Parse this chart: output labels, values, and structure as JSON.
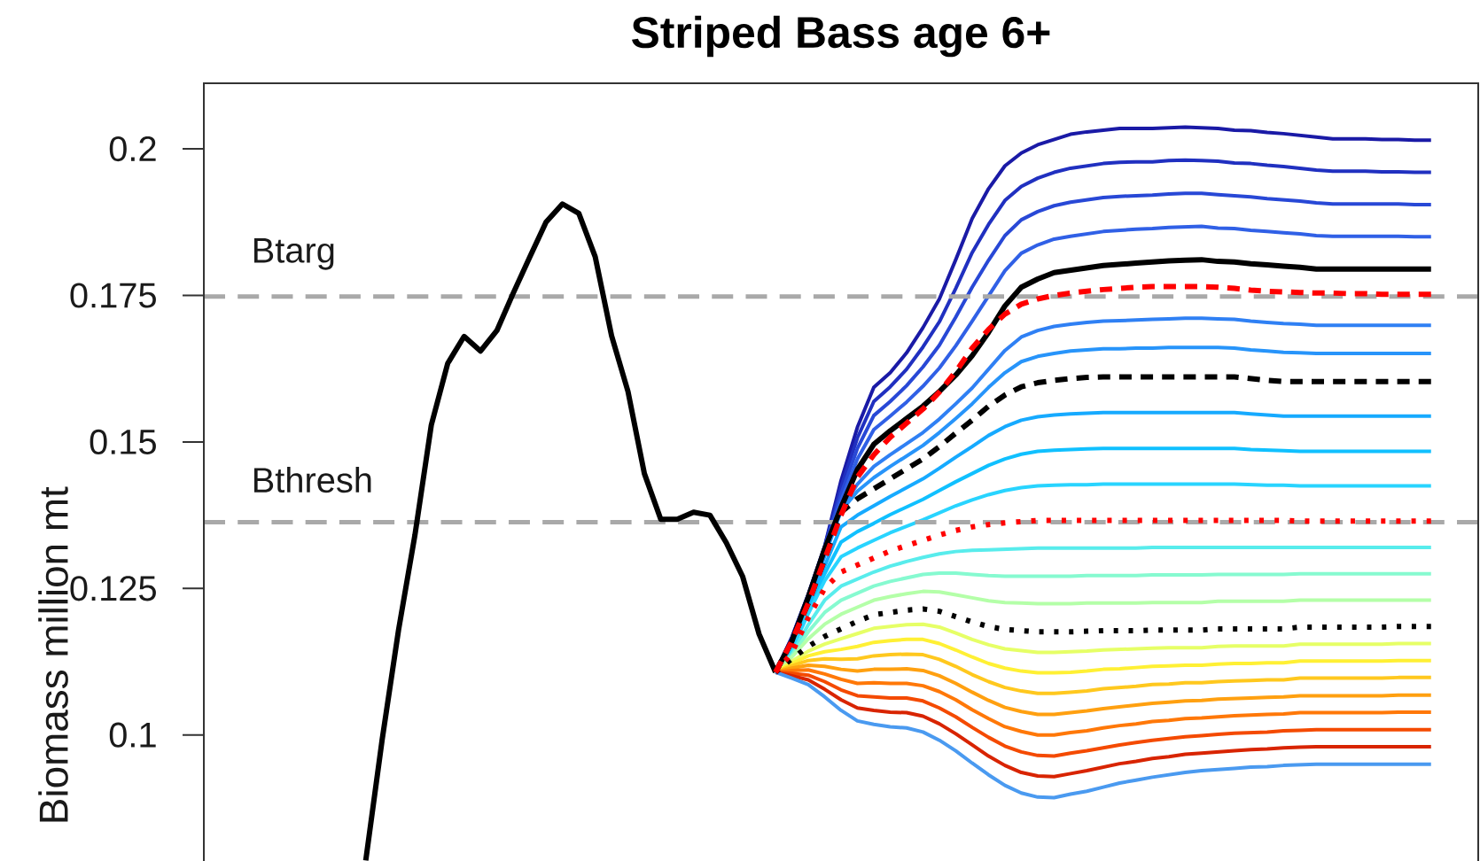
{
  "chart_data": {
    "type": "line",
    "title": "Striped Bass age 6+",
    "ylabel": "Biomass million mt",
    "categories": [
      null,
      null,
      null,
      null,
      null,
      null,
      null,
      null,
      null,
      null,
      null,
      null,
      null,
      null,
      null,
      null,
      null,
      null,
      null,
      null,
      null,
      null,
      null,
      null,
      null,
      null,
      null,
      null,
      null,
      null,
      null,
      null,
      null,
      null,
      null,
      null,
      null,
      null,
      null,
      null,
      null,
      null,
      null,
      null,
      null,
      null,
      null,
      null,
      null,
      null,
      null,
      null,
      null,
      null,
      null,
      null,
      null,
      null,
      null,
      null,
      null,
      null,
      null,
      null,
      null,
      null,
      null,
      null,
      null,
      null,
      null,
      null,
      null
    ],
    "ylim": [
      0.0785,
      0.2112
    ],
    "yticks": [
      0.1,
      0.125,
      0.15,
      0.175,
      0.2
    ],
    "tick_labels": "y",
    "ref_lines": [
      {
        "axis": "y",
        "value": 0.1748,
        "label": "Btarg",
        "color": "#a9a9a9",
        "line_style": "dashed"
      },
      {
        "axis": "y",
        "value": 0.1363,
        "label": "Bthresh",
        "color": "#a9a9a9",
        "line_style": "dashed"
      }
    ],
    "series": [
      {
        "color": "#1a1aa6",
        "values": [
          null,
          null,
          null,
          null,
          null,
          null,
          null,
          null,
          null,
          null,
          null,
          null,
          null,
          null,
          null,
          null,
          null,
          null,
          null,
          null,
          null,
          null,
          null,
          null,
          null,
          null,
          null,
          null,
          null,
          null,
          null,
          null,
          0.1107,
          0.1167,
          0.124,
          0.1322,
          0.1434,
          0.1525,
          0.1593,
          0.1618,
          0.1652,
          0.1695,
          0.1744,
          0.1811,
          0.1881,
          0.1932,
          0.1971,
          0.1993,
          0.2007,
          0.2016,
          0.2025,
          0.2029,
          0.2032,
          0.2035,
          0.2035,
          0.2035,
          0.2036,
          0.2037,
          0.2036,
          0.2035,
          0.2032,
          0.2031,
          0.2028,
          0.2026,
          0.2023,
          0.202,
          0.2017,
          0.2017,
          0.2017,
          0.2016,
          0.2016,
          0.2015,
          0.2015
        ]
      },
      {
        "color": "#2030c0",
        "values": [
          null,
          null,
          null,
          null,
          null,
          null,
          null,
          null,
          null,
          null,
          null,
          null,
          null,
          null,
          null,
          null,
          null,
          null,
          null,
          null,
          null,
          null,
          null,
          null,
          null,
          null,
          null,
          null,
          null,
          null,
          null,
          null,
          0.1107,
          0.1166,
          0.1239,
          0.1321,
          0.1423,
          0.1507,
          0.1569,
          0.1594,
          0.1624,
          0.1662,
          0.1705,
          0.1762,
          0.1823,
          0.1871,
          0.1912,
          0.1936,
          0.195,
          0.196,
          0.1967,
          0.1971,
          0.1975,
          0.1977,
          0.1978,
          0.1978,
          0.198,
          0.1981,
          0.198,
          0.1979,
          0.1976,
          0.1975,
          0.1972,
          0.197,
          0.1967,
          0.1964,
          0.1962,
          0.1962,
          0.1962,
          0.1961,
          0.1961,
          0.196,
          0.196
        ]
      },
      {
        "color": "#2848d6",
        "values": [
          null,
          null,
          null,
          null,
          null,
          null,
          null,
          null,
          null,
          null,
          null,
          null,
          null,
          null,
          null,
          null,
          null,
          null,
          null,
          null,
          null,
          null,
          null,
          null,
          null,
          null,
          null,
          null,
          null,
          null,
          null,
          null,
          0.1107,
          0.1164,
          0.1238,
          0.132,
          0.1411,
          0.1489,
          0.1545,
          0.1569,
          0.1596,
          0.1628,
          0.1665,
          0.1713,
          0.1764,
          0.181,
          0.1852,
          0.1879,
          0.1893,
          0.1903,
          0.1909,
          0.1913,
          0.1917,
          0.1919,
          0.192,
          0.1921,
          0.1923,
          0.1924,
          0.1924,
          0.1922,
          0.192,
          0.1918,
          0.1915,
          0.1913,
          0.1911,
          0.1908,
          0.1906,
          0.1906,
          0.1906,
          0.1906,
          0.1906,
          0.1905,
          0.1905
        ]
      },
      {
        "color": "#3060e6",
        "values": [
          null,
          null,
          null,
          null,
          null,
          null,
          null,
          null,
          null,
          null,
          null,
          null,
          null,
          null,
          null,
          null,
          null,
          null,
          null,
          null,
          null,
          null,
          null,
          null,
          null,
          null,
          null,
          null,
          null,
          null,
          null,
          null,
          0.1107,
          0.1162,
          0.1237,
          0.1319,
          0.14,
          0.1471,
          0.1521,
          0.1544,
          0.1568,
          0.1595,
          0.1626,
          0.1664,
          0.1706,
          0.1749,
          0.1792,
          0.1822,
          0.1836,
          0.1846,
          0.1851,
          0.1855,
          0.1859,
          0.1861,
          0.1863,
          0.1864,
          0.1866,
          0.1867,
          0.1868,
          0.1865,
          0.1864,
          0.1861,
          0.1859,
          0.1857,
          0.1855,
          0.1852,
          0.1851,
          0.1851,
          0.1851,
          0.1851,
          0.1851,
          0.185,
          0.185
        ]
      },
      {
        "color": "#2f80f4",
        "values": [
          null,
          null,
          null,
          null,
          null,
          null,
          null,
          null,
          null,
          null,
          null,
          null,
          null,
          null,
          null,
          null,
          null,
          null,
          null,
          null,
          null,
          null,
          null,
          null,
          null,
          null,
          null,
          null,
          null,
          null,
          null,
          null,
          0.1107,
          0.116,
          0.123,
          0.1309,
          0.1384,
          0.1428,
          0.1458,
          0.1478,
          0.1497,
          0.1516,
          0.1539,
          0.1565,
          0.1592,
          0.1624,
          0.1656,
          0.1679,
          0.169,
          0.1697,
          0.1701,
          0.1704,
          0.1706,
          0.1707,
          0.1708,
          0.1709,
          0.171,
          0.1711,
          0.1711,
          0.171,
          0.1709,
          0.1706,
          0.1704,
          0.1702,
          0.1701,
          0.1699,
          0.1699,
          0.1699,
          0.1699,
          0.1699,
          0.1699,
          0.1699,
          0.1699
        ]
      },
      {
        "color": "#2794fa",
        "values": [
          null,
          null,
          null,
          null,
          null,
          null,
          null,
          null,
          null,
          null,
          null,
          null,
          null,
          null,
          null,
          null,
          null,
          null,
          null,
          null,
          null,
          null,
          null,
          null,
          null,
          null,
          null,
          null,
          null,
          null,
          null,
          null,
          0.1107,
          0.116,
          0.1228,
          0.1305,
          0.1382,
          0.1416,
          0.1439,
          0.1458,
          0.1476,
          0.1494,
          0.1516,
          0.154,
          0.1565,
          0.1593,
          0.1618,
          0.1637,
          0.1646,
          0.1651,
          0.1655,
          0.1657,
          0.1659,
          0.1659,
          0.166,
          0.166,
          0.1661,
          0.1661,
          0.1661,
          0.1661,
          0.166,
          0.1657,
          0.1655,
          0.1653,
          0.1652,
          0.1651,
          0.1651,
          0.1651,
          0.1651,
          0.1651,
          0.1651,
          0.1651,
          0.1651
        ]
      },
      {
        "color": "#16aaff",
        "values": [
          null,
          null,
          null,
          null,
          null,
          null,
          null,
          null,
          null,
          null,
          null,
          null,
          null,
          null,
          null,
          null,
          null,
          null,
          null,
          null,
          null,
          null,
          null,
          null,
          null,
          null,
          null,
          null,
          null,
          null,
          null,
          null,
          0.1107,
          0.1155,
          0.1219,
          0.1288,
          0.1355,
          0.1375,
          0.1391,
          0.1407,
          0.1422,
          0.1437,
          0.1455,
          0.1474,
          0.1492,
          0.1511,
          0.1526,
          0.1537,
          0.1543,
          0.1546,
          0.1548,
          0.1549,
          0.155,
          0.155,
          0.155,
          0.155,
          0.155,
          0.155,
          0.155,
          0.155,
          0.155,
          0.1548,
          0.1546,
          0.1544,
          0.1544,
          0.1544,
          0.1544,
          0.1544,
          0.1544,
          0.1544,
          0.1544,
          0.1544,
          0.1544
        ]
      },
      {
        "color": "#10c0ff",
        "values": [
          null,
          null,
          null,
          null,
          null,
          null,
          null,
          null,
          null,
          null,
          null,
          null,
          null,
          null,
          null,
          null,
          null,
          null,
          null,
          null,
          null,
          null,
          null,
          null,
          null,
          null,
          null,
          null,
          null,
          null,
          null,
          null,
          0.1107,
          0.115,
          0.1213,
          0.1275,
          0.1329,
          0.1347,
          0.1361,
          0.1376,
          0.1389,
          0.1402,
          0.1417,
          0.1432,
          0.1446,
          0.146,
          0.1471,
          0.1479,
          0.1484,
          0.1486,
          0.1487,
          0.1488,
          0.1489,
          0.1489,
          0.1489,
          0.1489,
          0.1489,
          0.1489,
          0.1489,
          0.1489,
          0.1489,
          0.1487,
          0.1486,
          0.1485,
          0.1484,
          0.1484,
          0.1484,
          0.1484,
          0.1484,
          0.1484,
          0.1484,
          0.1484,
          0.1484
        ]
      },
      {
        "color": "#28d4ff",
        "values": [
          null,
          null,
          null,
          null,
          null,
          null,
          null,
          null,
          null,
          null,
          null,
          null,
          null,
          null,
          null,
          null,
          null,
          null,
          null,
          null,
          null,
          null,
          null,
          null,
          null,
          null,
          null,
          null,
          null,
          null,
          null,
          null,
          0.1107,
          0.1145,
          0.1207,
          0.1263,
          0.1304,
          0.1319,
          0.1332,
          0.1345,
          0.1356,
          0.1367,
          0.1379,
          0.1391,
          0.1401,
          0.141,
          0.1417,
          0.1422,
          0.1425,
          0.1426,
          0.1427,
          0.1427,
          0.1428,
          0.1428,
          0.1428,
          0.1428,
          0.1428,
          0.1428,
          0.1428,
          0.1428,
          0.1428,
          0.1427,
          0.1426,
          0.1426,
          0.1425,
          0.1425,
          0.1425,
          0.1425,
          0.1425,
          0.1425,
          0.1425,
          0.1425,
          0.1425
        ]
      },
      {
        "color": "#58ecec",
        "values": [
          null,
          null,
          null,
          null,
          null,
          null,
          null,
          null,
          null,
          null,
          null,
          null,
          null,
          null,
          null,
          null,
          null,
          null,
          null,
          null,
          null,
          null,
          null,
          null,
          null,
          null,
          null,
          null,
          null,
          null,
          null,
          null,
          0.1107,
          0.1138,
          0.1188,
          0.123,
          0.1254,
          0.1266,
          0.1278,
          0.1288,
          0.1296,
          0.1303,
          0.1309,
          0.1313,
          0.1315,
          0.1316,
          0.1317,
          0.1318,
          0.1319,
          0.1319,
          0.1319,
          0.1319,
          0.1319,
          0.1319,
          0.1319,
          0.132,
          0.132,
          0.132,
          0.132,
          0.132,
          0.132,
          0.132,
          0.132,
          0.132,
          0.132,
          0.132,
          0.132,
          0.132,
          0.132,
          0.132,
          0.132,
          0.132,
          0.132
        ]
      },
      {
        "color": "#86fad0",
        "values": [
          null,
          null,
          null,
          null,
          null,
          null,
          null,
          null,
          null,
          null,
          null,
          null,
          null,
          null,
          null,
          null,
          null,
          null,
          null,
          null,
          null,
          null,
          null,
          null,
          null,
          null,
          null,
          null,
          null,
          null,
          null,
          null,
          0.1107,
          0.1135,
          0.1176,
          0.1209,
          0.123,
          0.1242,
          0.1254,
          0.1262,
          0.1268,
          0.1274,
          0.1276,
          0.1276,
          0.1274,
          0.1272,
          0.1271,
          0.1271,
          0.1271,
          0.1271,
          0.1271,
          0.1272,
          0.1272,
          0.1272,
          0.1272,
          0.1273,
          0.1273,
          0.1273,
          0.1273,
          0.1274,
          0.1274,
          0.1274,
          0.1274,
          0.1274,
          0.1275,
          0.1275,
          0.1275,
          0.1275,
          0.1275,
          0.1275,
          0.1275,
          0.1275,
          0.1275
        ]
      },
      {
        "color": "#b4ffa8",
        "values": [
          null,
          null,
          null,
          null,
          null,
          null,
          null,
          null,
          null,
          null,
          null,
          null,
          null,
          null,
          null,
          null,
          null,
          null,
          null,
          null,
          null,
          null,
          null,
          null,
          null,
          null,
          null,
          null,
          null,
          null,
          null,
          null,
          0.1107,
          0.1133,
          0.1164,
          0.1189,
          0.1206,
          0.1218,
          0.123,
          0.1236,
          0.1241,
          0.1245,
          0.1244,
          0.1239,
          0.1234,
          0.1229,
          0.1226,
          0.1225,
          0.1224,
          0.1224,
          0.1224,
          0.1225,
          0.1225,
          0.1225,
          0.1225,
          0.1226,
          0.1226,
          0.1226,
          0.1226,
          0.1228,
          0.1228,
          0.1228,
          0.1228,
          0.1228,
          0.123,
          0.123,
          0.123,
          0.123,
          0.123,
          0.123,
          0.123,
          0.123,
          0.123
        ]
      },
      {
        "color": "#e6ff66",
        "values": [
          null,
          null,
          null,
          null,
          null,
          null,
          null,
          null,
          null,
          null,
          null,
          null,
          null,
          null,
          null,
          null,
          null,
          null,
          null,
          null,
          null,
          null,
          null,
          null,
          null,
          null,
          null,
          null,
          null,
          null,
          null,
          null,
          0.1107,
          0.1126,
          0.1143,
          0.1155,
          0.1164,
          0.1173,
          0.1182,
          0.1185,
          0.1188,
          0.1189,
          0.1184,
          0.1174,
          0.1163,
          0.1154,
          0.1147,
          0.1144,
          0.1141,
          0.1141,
          0.1142,
          0.1143,
          0.1145,
          0.1146,
          0.1147,
          0.1148,
          0.1149,
          0.1149,
          0.1149,
          0.1151,
          0.1152,
          0.1152,
          0.1152,
          0.1152,
          0.1155,
          0.1155,
          0.1155,
          0.1155,
          0.1155,
          0.1155,
          0.1156,
          0.1156,
          0.1156
        ]
      },
      {
        "color": "#fff034",
        "values": [
          null,
          null,
          null,
          null,
          null,
          null,
          null,
          null,
          null,
          null,
          null,
          null,
          null,
          null,
          null,
          null,
          null,
          null,
          null,
          null,
          null,
          null,
          null,
          null,
          null,
          null,
          null,
          null,
          null,
          null,
          null,
          null,
          0.1107,
          0.1122,
          0.1135,
          0.1142,
          0.1146,
          0.1151,
          0.1158,
          0.1161,
          0.1163,
          0.1163,
          0.1156,
          0.1145,
          0.1133,
          0.1122,
          0.1114,
          0.1109,
          0.1106,
          0.1106,
          0.1107,
          0.1109,
          0.1112,
          0.1113,
          0.1115,
          0.1117,
          0.1118,
          0.1119,
          0.1119,
          0.1121,
          0.1122,
          0.1122,
          0.1123,
          0.1123,
          0.1126,
          0.1126,
          0.1126,
          0.1126,
          0.1126,
          0.1126,
          0.1127,
          0.1127,
          0.1127
        ]
      },
      {
        "color": "#ffc81e",
        "values": [
          null,
          null,
          null,
          null,
          null,
          null,
          null,
          null,
          null,
          null,
          null,
          null,
          null,
          null,
          null,
          null,
          null,
          null,
          null,
          null,
          null,
          null,
          null,
          null,
          null,
          null,
          null,
          null,
          null,
          null,
          null,
          null,
          0.1107,
          0.1118,
          0.1127,
          0.113,
          0.1129,
          0.113,
          0.1135,
          0.1137,
          0.1138,
          0.1137,
          0.1129,
          0.1117,
          0.1103,
          0.1091,
          0.1081,
          0.1075,
          0.1071,
          0.1071,
          0.1073,
          0.1075,
          0.1079,
          0.1081,
          0.1083,
          0.1086,
          0.1087,
          0.1089,
          0.1089,
          0.1091,
          0.1092,
          0.1093,
          0.1094,
          0.1094,
          0.1097,
          0.1097,
          0.1097,
          0.1097,
          0.1097,
          0.1097,
          0.1098,
          0.1098,
          0.1098
        ]
      },
      {
        "color": "#ffa010",
        "values": [
          null,
          null,
          null,
          null,
          null,
          null,
          null,
          null,
          null,
          null,
          null,
          null,
          null,
          null,
          null,
          null,
          null,
          null,
          null,
          null,
          null,
          null,
          null,
          null,
          null,
          null,
          null,
          null,
          null,
          null,
          null,
          null,
          0.1107,
          0.1114,
          0.1119,
          0.1117,
          0.1112,
          0.1109,
          0.1112,
          0.1112,
          0.1113,
          0.111,
          0.1101,
          0.1088,
          0.1073,
          0.1059,
          0.1047,
          0.104,
          0.1035,
          0.1035,
          0.1038,
          0.1041,
          0.1045,
          0.1048,
          0.1051,
          0.1054,
          0.1056,
          0.1058,
          0.1059,
          0.1061,
          0.1062,
          0.1063,
          0.1064,
          0.1065,
          0.1067,
          0.1067,
          0.1067,
          0.1067,
          0.1067,
          0.1067,
          0.1068,
          0.1068,
          0.1068
        ]
      },
      {
        "color": "#ff7808",
        "values": [
          null,
          null,
          null,
          null,
          null,
          null,
          null,
          null,
          null,
          null,
          null,
          null,
          null,
          null,
          null,
          null,
          null,
          null,
          null,
          null,
          null,
          null,
          null,
          null,
          null,
          null,
          null,
          null,
          null,
          null,
          null,
          null,
          0.1107,
          0.111,
          0.1111,
          0.1104,
          0.1095,
          0.1088,
          0.1089,
          0.1088,
          0.1088,
          0.1084,
          0.1074,
          0.106,
          0.1043,
          0.1028,
          0.1014,
          0.1006,
          0.1,
          0.1,
          0.1004,
          0.1007,
          0.1012,
          0.1016,
          0.1019,
          0.1023,
          0.1025,
          0.1028,
          0.1029,
          0.1031,
          0.1033,
          0.1034,
          0.1035,
          0.1036,
          0.1038,
          0.1038,
          0.1038,
          0.1038,
          0.1038,
          0.1038,
          0.1039,
          0.1039,
          0.1039
        ]
      },
      {
        "color": "#f44a00",
        "values": [
          null,
          null,
          null,
          null,
          null,
          null,
          null,
          null,
          null,
          null,
          null,
          null,
          null,
          null,
          null,
          null,
          null,
          null,
          null,
          null,
          null,
          null,
          null,
          null,
          null,
          null,
          null,
          null,
          null,
          null,
          null,
          null,
          0.1107,
          0.1105,
          0.1102,
          0.1091,
          0.1077,
          0.1067,
          0.1065,
          0.1063,
          0.1063,
          0.1058,
          0.1046,
          0.1031,
          0.1013,
          0.0996,
          0.0981,
          0.0971,
          0.0965,
          0.0964,
          0.0969,
          0.0973,
          0.0978,
          0.0983,
          0.0987,
          0.0991,
          0.0994,
          0.0997,
          0.0999,
          0.1001,
          0.1003,
          0.1004,
          0.1005,
          0.1007,
          0.1008,
          0.1009,
          0.1009,
          0.1009,
          0.1009,
          0.1009,
          0.1009,
          0.1009,
          0.1009
        ]
      },
      {
        "color": "#d82400",
        "values": [
          null,
          null,
          null,
          null,
          null,
          null,
          null,
          null,
          null,
          null,
          null,
          null,
          null,
          null,
          null,
          null,
          null,
          null,
          null,
          null,
          null,
          null,
          null,
          null,
          null,
          null,
          null,
          null,
          null,
          null,
          null,
          null,
          0.1107,
          0.1101,
          0.1094,
          0.1078,
          0.106,
          0.1046,
          0.1042,
          0.1039,
          0.1038,
          0.1032,
          0.1019,
          0.1002,
          0.0983,
          0.0964,
          0.0948,
          0.0936,
          0.093,
          0.0929,
          0.0934,
          0.0939,
          0.0945,
          0.0951,
          0.0955,
          0.096,
          0.0963,
          0.0967,
          0.0969,
          0.0971,
          0.0973,
          0.0975,
          0.0976,
          0.0978,
          0.0979,
          0.098,
          0.098,
          0.098,
          0.098,
          0.098,
          0.098,
          0.098,
          0.098
        ]
      },
      {
        "color": "#4a9af0",
        "values": [
          null,
          null,
          null,
          null,
          null,
          null,
          null,
          null,
          null,
          null,
          null,
          null,
          null,
          null,
          null,
          null,
          null,
          null,
          null,
          null,
          null,
          null,
          null,
          null,
          null,
          null,
          null,
          null,
          null,
          null,
          null,
          null,
          0.1107,
          0.1097,
          0.1086,
          0.1065,
          0.1042,
          0.1024,
          0.1018,
          0.1014,
          0.1012,
          0.1005,
          0.0991,
          0.0973,
          0.0952,
          0.0932,
          0.0914,
          0.0901,
          0.0894,
          0.0893,
          0.0899,
          0.0904,
          0.0911,
          0.0918,
          0.0923,
          0.0928,
          0.0932,
          0.0936,
          0.0939,
          0.0941,
          0.0943,
          0.0945,
          0.0946,
          0.0948,
          0.0949,
          0.095,
          0.095,
          0.095,
          0.095,
          0.095,
          0.095,
          0.095,
          0.095
        ]
      },
      {
        "color": "#000000",
        "line_style": "solid",
        "values": [
          null,
          null,
          null,
          null,
          null,
          null,
          null,
          0.0786,
          0.0992,
          0.1179,
          0.1341,
          0.1529,
          0.1634,
          0.168,
          0.1655,
          0.169,
          0.1754,
          0.1815,
          0.1875,
          0.1906,
          0.189,
          0.1816,
          0.1681,
          0.1586,
          0.1446,
          0.1368,
          0.1368,
          0.138,
          0.1375,
          0.1328,
          0.127,
          0.1172,
          0.1107,
          null,
          null,
          null,
          null,
          null,
          null,
          null,
          null,
          null,
          null,
          null,
          null,
          null,
          null,
          null,
          null,
          null,
          null,
          null,
          null,
          null,
          null,
          null,
          null,
          null,
          null,
          null,
          null,
          null,
          null,
          null,
          null,
          null,
          null,
          null,
          null,
          null,
          null,
          null,
          null
        ]
      },
      {
        "color": "#000000",
        "line_style": "solid",
        "values": [
          null,
          null,
          null,
          null,
          null,
          null,
          null,
          null,
          null,
          null,
          null,
          null,
          null,
          null,
          null,
          null,
          null,
          null,
          null,
          null,
          null,
          null,
          null,
          null,
          null,
          null,
          null,
          null,
          null,
          null,
          null,
          null,
          0.1107,
          0.116,
          0.1235,
          0.1317,
          0.1388,
          0.1453,
          0.1496,
          0.1519,
          0.154,
          0.1561,
          0.1586,
          0.1614,
          0.1647,
          0.1687,
          0.1732,
          0.1764,
          0.1778,
          0.1789,
          0.1793,
          0.1797,
          0.1801,
          0.1803,
          0.1805,
          0.1807,
          0.1809,
          0.181,
          0.1811,
          0.1808,
          0.1807,
          0.1804,
          0.1802,
          0.18,
          0.1798,
          0.1795,
          0.1795,
          0.1795,
          0.1795,
          0.1795,
          0.1795,
          0.1795,
          0.1795
        ]
      },
      {
        "color": "#000000",
        "line_style": "dashed",
        "values": [
          null,
          null,
          null,
          null,
          null,
          null,
          null,
          null,
          null,
          null,
          null,
          null,
          null,
          null,
          null,
          null,
          null,
          null,
          null,
          null,
          null,
          null,
          null,
          null,
          null,
          null,
          null,
          null,
          null,
          null,
          null,
          null,
          0.1107,
          0.116,
          0.1225,
          0.13,
          0.138,
          0.1403,
          0.142,
          0.1437,
          0.1454,
          0.1471,
          0.1492,
          0.1515,
          0.1537,
          0.1561,
          0.158,
          0.1594,
          0.1601,
          0.1605,
          0.1608,
          0.161,
          0.1611,
          0.1611,
          0.1611,
          0.1611,
          0.1611,
          0.1611,
          0.1611,
          0.1611,
          0.1611,
          0.1608,
          0.1605,
          0.1603,
          0.1603,
          0.1603,
          0.1603,
          0.1603,
          0.1603,
          0.1603,
          0.1603,
          0.1603,
          0.1603
        ]
      },
      {
        "color": "#000000",
        "line_style": "dotted",
        "values": [
          null,
          null,
          null,
          null,
          null,
          null,
          null,
          null,
          null,
          null,
          null,
          null,
          null,
          null,
          null,
          null,
          null,
          null,
          null,
          null,
          null,
          null,
          null,
          null,
          null,
          null,
          null,
          null,
          null,
          null,
          null,
          null,
          0.1107,
          0.113,
          0.1151,
          0.1168,
          0.1181,
          0.1194,
          0.1205,
          0.1209,
          0.1213,
          0.1215,
          0.1211,
          0.1202,
          0.1193,
          0.1185,
          0.118,
          0.1178,
          0.1176,
          0.1176,
          0.1176,
          0.1177,
          0.1178,
          0.1178,
          0.1178,
          0.1179,
          0.1179,
          0.1179,
          0.1179,
          0.1181,
          0.1181,
          0.1181,
          0.1181,
          0.1181,
          0.1184,
          0.1184,
          0.1184,
          0.1184,
          0.1184,
          0.1184,
          0.1185,
          0.1185,
          0.1185
        ]
      },
      {
        "color": "#ff0000",
        "line_style": "dashed",
        "values": [
          null,
          null,
          null,
          null,
          null,
          null,
          null,
          null,
          null,
          null,
          null,
          null,
          null,
          null,
          null,
          null,
          null,
          null,
          null,
          null,
          null,
          null,
          null,
          null,
          null,
          null,
          null,
          null,
          null,
          null,
          null,
          null,
          0.1107,
          0.116,
          0.1225,
          0.13,
          0.1375,
          0.144,
          0.1478,
          0.1508,
          0.1532,
          0.1556,
          0.1585,
          0.162,
          0.166,
          0.1692,
          0.1718,
          0.1735,
          0.1744,
          0.175,
          0.1754,
          0.1757,
          0.176,
          0.1762,
          0.1764,
          0.1765,
          0.1765,
          0.1765,
          0.1765,
          0.1764,
          0.1762,
          0.1759,
          0.1757,
          0.1756,
          0.1755,
          0.1754,
          0.1754,
          0.1753,
          0.1753,
          0.1752,
          0.1752,
          0.1752,
          0.1752
        ]
      },
      {
        "color": "#ff0000",
        "line_style": "dotted",
        "values": [
          null,
          null,
          null,
          null,
          null,
          null,
          null,
          null,
          null,
          null,
          null,
          null,
          null,
          null,
          null,
          null,
          null,
          null,
          null,
          null,
          null,
          null,
          null,
          null,
          null,
          null,
          null,
          null,
          null,
          null,
          null,
          null,
          0.1107,
          0.114,
          0.12,
          0.125,
          0.1278,
          0.129,
          0.1302,
          0.1314,
          0.1323,
          0.1332,
          0.1341,
          0.1349,
          0.1355,
          0.1359,
          0.1362,
          0.1364,
          0.1366,
          0.1366,
          0.1366,
          0.1366,
          0.1366,
          0.1366,
          0.1366,
          0.1366,
          0.1366,
          0.1366,
          0.1366,
          0.1366,
          0.1366,
          0.1366,
          0.1366,
          0.1366,
          0.1365,
          0.1365,
          0.1365,
          0.1365,
          0.1365,
          0.1365,
          0.1365,
          0.1365,
          0.1365
        ]
      }
    ]
  }
}
